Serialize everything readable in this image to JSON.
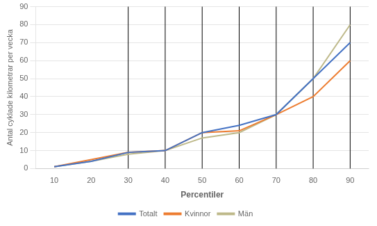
{
  "chart_data": {
    "type": "line",
    "x": [
      10,
      20,
      30,
      40,
      50,
      60,
      70,
      80,
      90
    ],
    "series": [
      {
        "name": "Totalt",
        "color": "#4472C4",
        "values": [
          1,
          4,
          9,
          10,
          20,
          24,
          30,
          50,
          70
        ]
      },
      {
        "name": "Kvinnor",
        "color": "#ED7D31",
        "values": [
          1,
          5,
          9,
          10,
          20,
          21,
          30,
          40,
          60
        ]
      },
      {
        "name": "Män",
        "color": "#BEB98A",
        "values": [
          1,
          4,
          8,
          10,
          17,
          20,
          30,
          50,
          80
        ]
      }
    ],
    "vlines": [
      30,
      40,
      50,
      60,
      70,
      80,
      90
    ],
    "xlabel": "Percentiler",
    "ylabel": "Antal cyklade kilometrar per vecka",
    "xlim": [
      5,
      95
    ],
    "xticks": [
      10,
      20,
      30,
      40,
      50,
      60,
      70,
      80,
      90
    ],
    "ylim": [
      0,
      90
    ],
    "yticks": [
      0,
      10,
      20,
      30,
      40,
      50,
      60,
      70,
      80,
      90
    ],
    "grid": "y",
    "legend": "bottom"
  }
}
